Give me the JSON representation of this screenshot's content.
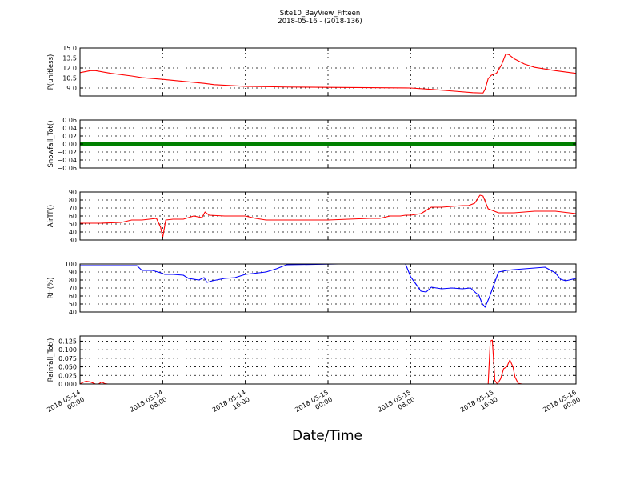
{
  "chart_data": {
    "title": "Site10_BayView_Fifteen",
    "subtitle": "2018-05-16 - (2018-136)",
    "xlabel": "Date/Time",
    "x_ticks": [
      "2018-05-14\n00:00",
      "2018-05-14\n08:00",
      "2018-05-14\n16:00",
      "2018-05-15\n00:00",
      "2018-05-15\n08:00",
      "2018-05-15\n16:00",
      "2018-05-16\n00:00"
    ],
    "xlim_hours": [
      0,
      48
    ],
    "grid": true,
    "panels": [
      {
        "type": "line",
        "ylabel": "P(unitless)",
        "ylim": [
          7.8,
          15.0
        ],
        "y_ticks": [
          "15.0",
          "13.5",
          "12.0",
          "10.5",
          "9.0"
        ],
        "y_tick_values": [
          15.0,
          13.5,
          12.0,
          10.5,
          9.0
        ],
        "color": "#ff0000",
        "x": [
          0,
          1,
          1.5,
          3,
          5,
          6,
          8,
          10,
          12,
          13,
          16,
          20,
          24,
          28,
          32,
          34,
          36,
          38,
          39,
          39.2,
          39.5,
          39.8,
          40.3,
          40.8,
          41.2,
          41.5,
          42,
          43,
          44,
          46,
          48
        ],
        "y": [
          11.3,
          11.6,
          11.6,
          11.2,
          10.8,
          10.55,
          10.3,
          10.0,
          9.7,
          9.5,
          9.25,
          9.15,
          9.1,
          9.05,
          9.0,
          8.8,
          8.55,
          8.3,
          8.25,
          8.8,
          10.4,
          10.9,
          11.2,
          12.5,
          14.1,
          14.0,
          13.4,
          12.6,
          12.1,
          11.6,
          11.2
        ]
      },
      {
        "type": "line",
        "ylabel": "Snowfall_Tot()",
        "ylim": [
          -0.06,
          0.06
        ],
        "y_ticks": [
          "0.06",
          "0.04",
          "0.02",
          "0.00",
          "−0.02",
          "−0.04",
          "−0.06"
        ],
        "y_tick_values": [
          0.06,
          0.04,
          0.02,
          0.0,
          -0.02,
          -0.04,
          -0.06
        ],
        "color": "#008000",
        "x": [
          0,
          48
        ],
        "y": [
          0,
          0
        ]
      },
      {
        "type": "line",
        "ylabel": "AirTF()",
        "ylim": [
          30,
          90
        ],
        "y_ticks": [
          "90",
          "80",
          "70",
          "60",
          "50",
          "40",
          "30"
        ],
        "y_tick_values": [
          90,
          80,
          70,
          60,
          50,
          40,
          30
        ],
        "color": "#ff0000",
        "x": [
          0,
          2,
          4,
          5,
          6,
          7.4,
          7.8,
          8.0,
          8.3,
          9,
          10,
          11,
          11.8,
          12.1,
          12.5,
          14,
          16,
          17,
          18,
          20,
          24,
          26,
          28,
          29,
          30,
          31,
          31.5,
          32,
          33,
          34,
          35,
          36,
          37,
          37.6,
          38.2,
          38.7,
          39.0,
          39.5,
          40.5,
          42,
          44,
          46,
          48
        ],
        "y": [
          51,
          51,
          52,
          55,
          55,
          57,
          46,
          33,
          55,
          56,
          56,
          60,
          58,
          65,
          61,
          60,
          60,
          57,
          55,
          55,
          55,
          56,
          57,
          57,
          60,
          60,
          61,
          61,
          63,
          71,
          71,
          72,
          73,
          73,
          76,
          86,
          85,
          69,
          64,
          64,
          66,
          66,
          63
        ]
      },
      {
        "type": "line",
        "ylabel": "RH(%)",
        "ylim": [
          40,
          100
        ],
        "y_ticks": [
          "100",
          "90",
          "80",
          "70",
          "60",
          "50",
          "40"
        ],
        "y_tick_values": [
          100,
          90,
          80,
          70,
          60,
          50,
          40
        ],
        "color": "#0000ff",
        "x": [
          0,
          5,
          5.5,
          6,
          7,
          7.8,
          8.2,
          9,
          10,
          10.5,
          11.5,
          12,
          12.3,
          12.8,
          14,
          15,
          16,
          18,
          19,
          20,
          25,
          31.5,
          32,
          33,
          33.5,
          34,
          35,
          36,
          37,
          37.8,
          38.3,
          38.6,
          38.9,
          39.2,
          39.6,
          40.5,
          41.3,
          42,
          45,
          46,
          46.5,
          47,
          48
        ],
        "y": [
          98,
          98,
          98,
          92,
          92,
          89,
          87,
          87,
          86,
          82,
          80,
          83,
          77,
          79,
          82,
          83,
          87,
          90,
          94,
          99,
          100,
          100,
          84,
          66,
          65,
          71,
          69,
          70,
          69,
          70,
          64,
          61,
          51,
          46,
          58,
          90,
          92,
          93,
          96,
          89,
          81,
          79,
          82
        ]
      },
      {
        "type": "line",
        "ylabel": "Rainfall_Tot()",
        "ylim": [
          0,
          0.14
        ],
        "y_ticks": [
          "0.125",
          "0.100",
          "0.075",
          "0.050",
          "0.025",
          "0.000"
        ],
        "y_tick_values": [
          0.125,
          0.1,
          0.075,
          0.05,
          0.025,
          0.0
        ],
        "color": "#ff0000",
        "x": [
          0,
          0.3,
          0.6,
          1.0,
          1.5,
          1.8,
          2.1,
          2.4,
          2.7,
          39.5,
          39.7,
          39.9,
          40.15,
          40.4,
          40.7,
          41.0,
          41.3,
          41.6,
          41.9,
          42.1,
          42.4,
          42.8,
          48
        ],
        "y": [
          0,
          0.005,
          0.008,
          0.006,
          0.0,
          0.0,
          0.006,
          0.001,
          0.0,
          0.0,
          0.125,
          0.128,
          0.01,
          0.0,
          0.015,
          0.045,
          0.05,
          0.07,
          0.05,
          0.02,
          0.002,
          0.0,
          0.0
        ]
      }
    ]
  }
}
